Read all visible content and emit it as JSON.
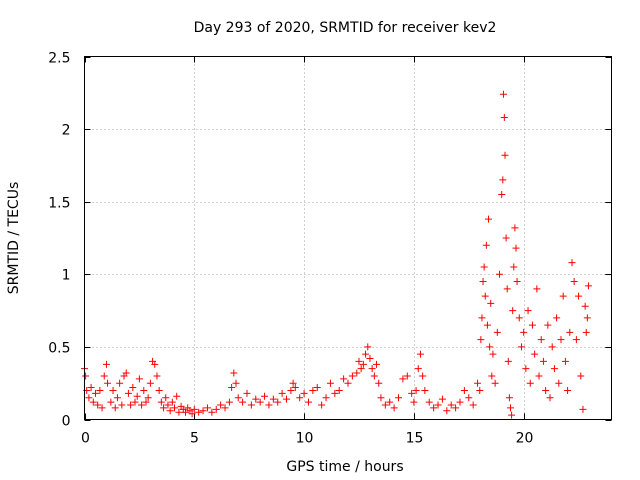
{
  "chart_data": {
    "type": "scatter",
    "title": "Day 293 of 2020, SRMTID for receiver kev2",
    "xlabel": "GPS time / hours",
    "ylabel": "SRMTID / TECUs",
    "xlim": [
      0,
      24
    ],
    "ylim": [
      0,
      2.5
    ],
    "xticks": [
      0,
      5,
      10,
      15,
      20
    ],
    "xtick_labels": [
      "0",
      "5",
      "10",
      "15",
      "20"
    ],
    "yticks": [
      0,
      0.5,
      1,
      1.5,
      2,
      2.5
    ],
    "ytick_labels": [
      "0",
      "0.5",
      "1",
      "1.5",
      "2",
      "2.5"
    ],
    "grid": true,
    "marker": "+",
    "series": [
      {
        "name": "SRMTID",
        "color": "#ff0000",
        "points": [
          [
            0.0,
            0.35
          ],
          [
            0.05,
            0.3
          ],
          [
            0.1,
            0.2
          ],
          [
            0.2,
            0.15
          ],
          [
            0.3,
            0.22
          ],
          [
            0.4,
            0.12
          ],
          [
            0.5,
            0.18
          ],
          [
            0.6,
            0.1
          ],
          [
            0.7,
            0.2
          ],
          [
            0.8,
            0.08
          ],
          [
            0.9,
            0.3
          ],
          [
            1.0,
            0.38
          ],
          [
            1.05,
            0.25
          ],
          [
            1.2,
            0.12
          ],
          [
            1.3,
            0.2
          ],
          [
            1.4,
            0.08
          ],
          [
            1.5,
            0.15
          ],
          [
            1.6,
            0.25
          ],
          [
            1.7,
            0.1
          ],
          [
            1.8,
            0.3
          ],
          [
            1.9,
            0.32
          ],
          [
            2.0,
            0.18
          ],
          [
            2.1,
            0.1
          ],
          [
            2.2,
            0.22
          ],
          [
            2.3,
            0.12
          ],
          [
            2.4,
            0.16
          ],
          [
            2.5,
            0.28
          ],
          [
            2.6,
            0.1
          ],
          [
            2.7,
            0.2
          ],
          [
            2.8,
            0.12
          ],
          [
            2.9,
            0.15
          ],
          [
            3.0,
            0.25
          ],
          [
            3.1,
            0.4
          ],
          [
            3.2,
            0.38
          ],
          [
            3.3,
            0.3
          ],
          [
            3.4,
            0.2
          ],
          [
            3.5,
            0.12
          ],
          [
            3.6,
            0.08
          ],
          [
            3.7,
            0.15
          ],
          [
            3.8,
            0.1
          ],
          [
            3.9,
            0.06
          ],
          [
            4.0,
            0.12
          ],
          [
            4.1,
            0.08
          ],
          [
            4.2,
            0.16
          ],
          [
            4.3,
            0.05
          ],
          [
            4.4,
            0.09
          ],
          [
            4.5,
            0.07
          ],
          [
            4.6,
            0.05
          ],
          [
            4.7,
            0.08
          ],
          [
            4.8,
            0.06
          ],
          [
            4.9,
            0.04
          ],
          [
            5.0,
            0.07
          ],
          [
            5.2,
            0.05
          ],
          [
            5.4,
            0.06
          ],
          [
            5.6,
            0.08
          ],
          [
            5.8,
            0.05
          ],
          [
            6.0,
            0.07
          ],
          [
            6.2,
            0.1
          ],
          [
            6.4,
            0.08
          ],
          [
            6.6,
            0.12
          ],
          [
            6.7,
            0.22
          ],
          [
            6.8,
            0.32
          ],
          [
            6.9,
            0.25
          ],
          [
            7.0,
            0.15
          ],
          [
            7.2,
            0.12
          ],
          [
            7.4,
            0.18
          ],
          [
            7.6,
            0.1
          ],
          [
            7.8,
            0.14
          ],
          [
            8.0,
            0.12
          ],
          [
            8.2,
            0.16
          ],
          [
            8.4,
            0.1
          ],
          [
            8.6,
            0.14
          ],
          [
            8.8,
            0.12
          ],
          [
            9.0,
            0.18
          ],
          [
            9.2,
            0.14
          ],
          [
            9.4,
            0.2
          ],
          [
            9.5,
            0.25
          ],
          [
            9.6,
            0.22
          ],
          [
            9.8,
            0.15
          ],
          [
            10.0,
            0.18
          ],
          [
            10.2,
            0.12
          ],
          [
            10.4,
            0.2
          ],
          [
            10.6,
            0.22
          ],
          [
            10.8,
            0.1
          ],
          [
            11.0,
            0.15
          ],
          [
            11.2,
            0.25
          ],
          [
            11.4,
            0.18
          ],
          [
            11.6,
            0.2
          ],
          [
            11.8,
            0.28
          ],
          [
            12.0,
            0.25
          ],
          [
            12.2,
            0.3
          ],
          [
            12.4,
            0.32
          ],
          [
            12.5,
            0.4
          ],
          [
            12.6,
            0.35
          ],
          [
            12.7,
            0.38
          ],
          [
            12.8,
            0.45
          ],
          [
            12.9,
            0.5
          ],
          [
            13.0,
            0.42
          ],
          [
            13.1,
            0.35
          ],
          [
            13.2,
            0.3
          ],
          [
            13.3,
            0.38
          ],
          [
            13.4,
            0.25
          ],
          [
            13.5,
            0.15
          ],
          [
            13.7,
            0.1
          ],
          [
            13.9,
            0.12
          ],
          [
            14.1,
            0.08
          ],
          [
            14.3,
            0.15
          ],
          [
            14.5,
            0.28
          ],
          [
            14.7,
            0.3
          ],
          [
            14.9,
            0.18
          ],
          [
            15.0,
            0.12
          ],
          [
            15.1,
            0.2
          ],
          [
            15.2,
            0.35
          ],
          [
            15.3,
            0.45
          ],
          [
            15.4,
            0.3
          ],
          [
            15.5,
            0.2
          ],
          [
            15.7,
            0.12
          ],
          [
            15.9,
            0.08
          ],
          [
            16.1,
            0.1
          ],
          [
            16.3,
            0.14
          ],
          [
            16.5,
            0.06
          ],
          [
            16.7,
            0.1
          ],
          [
            16.9,
            0.08
          ],
          [
            17.1,
            0.12
          ],
          [
            17.3,
            0.2
          ],
          [
            17.5,
            0.15
          ],
          [
            17.7,
            0.1
          ],
          [
            17.9,
            0.25
          ],
          [
            18.0,
            0.2
          ],
          [
            18.05,
            0.55
          ],
          [
            18.1,
            0.7
          ],
          [
            18.15,
            0.95
          ],
          [
            18.2,
            1.05
          ],
          [
            18.25,
            0.85
          ],
          [
            18.3,
            1.2
          ],
          [
            18.35,
            0.65
          ],
          [
            18.4,
            1.38
          ],
          [
            18.45,
            0.5
          ],
          [
            18.5,
            0.8
          ],
          [
            18.55,
            0.3
          ],
          [
            18.6,
            0.45
          ],
          [
            18.7,
            0.25
          ],
          [
            18.8,
            0.6
          ],
          [
            18.9,
            1.0
          ],
          [
            19.0,
            1.55
          ],
          [
            19.05,
            1.65
          ],
          [
            19.08,
            2.24
          ],
          [
            19.12,
            2.08
          ],
          [
            19.15,
            1.82
          ],
          [
            19.2,
            1.25
          ],
          [
            19.25,
            0.9
          ],
          [
            19.3,
            0.4
          ],
          [
            19.35,
            0.15
          ],
          [
            19.4,
            0.08
          ],
          [
            19.45,
            0.03
          ],
          [
            19.5,
            0.75
          ],
          [
            19.55,
            1.05
          ],
          [
            19.6,
            1.32
          ],
          [
            19.65,
            1.18
          ],
          [
            19.7,
            0.95
          ],
          [
            19.8,
            0.7
          ],
          [
            19.9,
            0.5
          ],
          [
            20.0,
            0.6
          ],
          [
            20.1,
            0.35
          ],
          [
            20.2,
            0.75
          ],
          [
            20.3,
            0.25
          ],
          [
            20.4,
            0.65
          ],
          [
            20.5,
            0.45
          ],
          [
            20.6,
            0.9
          ],
          [
            20.7,
            0.3
          ],
          [
            20.8,
            0.55
          ],
          [
            20.9,
            0.4
          ],
          [
            21.0,
            0.2
          ],
          [
            21.1,
            0.65
          ],
          [
            21.2,
            0.15
          ],
          [
            21.3,
            0.5
          ],
          [
            21.4,
            0.35
          ],
          [
            21.5,
            0.7
          ],
          [
            21.6,
            0.25
          ],
          [
            21.7,
            0.55
          ],
          [
            21.8,
            0.85
          ],
          [
            21.9,
            0.4
          ],
          [
            22.0,
            0.2
          ],
          [
            22.1,
            0.6
          ],
          [
            22.2,
            1.08
          ],
          [
            22.3,
            0.95
          ],
          [
            22.4,
            0.55
          ],
          [
            22.5,
            0.85
          ],
          [
            22.6,
            0.3
          ],
          [
            22.7,
            0.07
          ],
          [
            22.8,
            0.78
          ],
          [
            22.85,
            0.6
          ],
          [
            22.9,
            0.7
          ],
          [
            22.95,
            0.92
          ]
        ]
      }
    ]
  }
}
